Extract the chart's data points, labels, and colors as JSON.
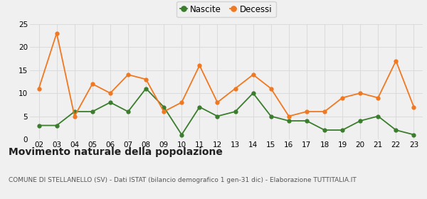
{
  "years": [
    2,
    3,
    4,
    5,
    6,
    7,
    8,
    9,
    10,
    11,
    12,
    13,
    14,
    15,
    16,
    17,
    18,
    19,
    20,
    21,
    22,
    23
  ],
  "nascite": [
    3,
    3,
    6,
    6,
    8,
    6,
    11,
    7,
    1,
    7,
    5,
    6,
    10,
    5,
    4,
    4,
    2,
    2,
    4,
    5,
    2,
    1
  ],
  "decessi": [
    11,
    23,
    5,
    12,
    10,
    14,
    13,
    6,
    8,
    16,
    8,
    11,
    14,
    11,
    5,
    6,
    6,
    9,
    10,
    9,
    17,
    7
  ],
  "nascite_color": "#3a7d2c",
  "decessi_color": "#f07820",
  "background_color": "#f0f0f0",
  "grid_color": "#d8d8d8",
  "title": "Movimento naturale della popolazione",
  "subtitle": "COMUNE DI STELLANELLO (SV) - Dati ISTAT (bilancio demografico 1 gen-31 dic) - Elaborazione TUTTITALIA.IT",
  "legend_nascite": "Nascite",
  "legend_decessi": "Decessi",
  "ylim": [
    0,
    25
  ],
  "yticks": [
    0,
    5,
    10,
    15,
    20,
    25
  ],
  "title_fontsize": 10,
  "subtitle_fontsize": 6.5,
  "legend_fontsize": 8.5,
  "tick_fontsize": 7.5
}
